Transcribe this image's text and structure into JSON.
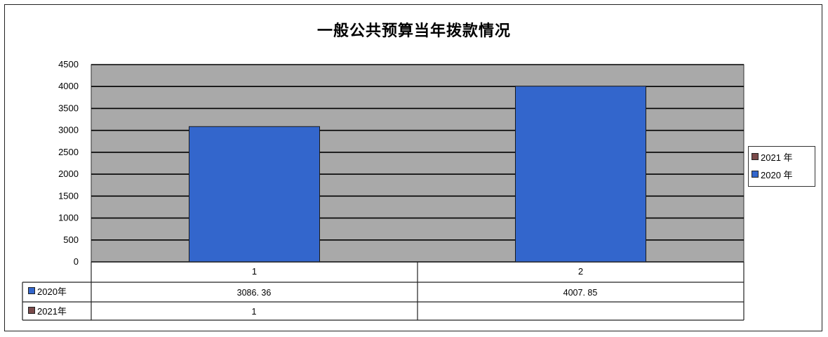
{
  "chart_data": {
    "type": "bar",
    "title": "一般公共预算当年拨款情况",
    "categories": [
      "1",
      "2"
    ],
    "series": [
      {
        "name": "2020年",
        "values": [
          3086.36,
          4007.85
        ],
        "display": [
          "3086. 36",
          "4007. 85"
        ],
        "color": "#3366CC"
      },
      {
        "name": "2021年",
        "values": [
          1,
          null
        ],
        "display": [
          "1",
          ""
        ],
        "color": "#7a4a4a"
      }
    ],
    "yticks": [
      "4500",
      "4000",
      "3500",
      "3000",
      "2500",
      "2000",
      "1500",
      "1000",
      "500",
      "0"
    ],
    "ylim": [
      0,
      4500
    ],
    "grid": true,
    "plot_background": "#a9a9a9",
    "legend": {
      "placement": "right",
      "items": [
        {
          "label": "2021 年",
          "color": "#7a4a4a"
        },
        {
          "label": "2020 年",
          "color": "#3366CC"
        }
      ]
    },
    "data_table": {
      "rows": [
        {
          "label": "2020年",
          "color": "#3366CC"
        },
        {
          "label": "2021年",
          "color": "#7a4a4a"
        }
      ]
    }
  }
}
